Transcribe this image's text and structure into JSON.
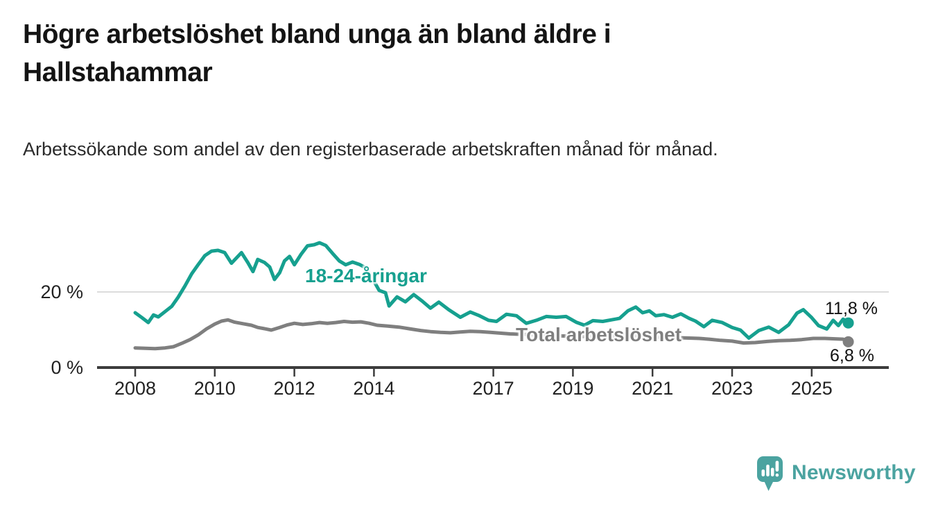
{
  "header": {
    "title": "Högre arbetslöshet bland unga än bland äldre i Hallstahammar",
    "subtitle": "Arbetssökande som andel av den registerbaserade arbetskraften månad för månad."
  },
  "chart_data": {
    "type": "line",
    "title": "Högre arbetslöshet bland unga än bland äldre i Hallstahammar",
    "subtitle": "Arbetssökande som andel av den registerbaserade arbetskraften månad för månad.",
    "grid": "horizontal-only",
    "x_axis": {
      "ticks": [
        2008,
        2010,
        2012,
        2014,
        2017,
        2019,
        2021,
        2023,
        2025
      ],
      "range": [
        2007.0,
        2026.9
      ]
    },
    "y_axis": {
      "ticks": [
        {
          "value": 0,
          "label": "0 %"
        },
        {
          "value": 20,
          "label": "20 %"
        }
      ],
      "range": [
        0,
        36
      ],
      "unit": "%"
    },
    "series": [
      {
        "name": "18-24-åringar",
        "color": "#16a08f",
        "end_value": 11.8,
        "end_label": "11,8 %",
        "points": [
          [
            2008.0,
            14.5
          ],
          [
            2008.17,
            13.2
          ],
          [
            2008.33,
            11.9
          ],
          [
            2008.46,
            13.9
          ],
          [
            2008.58,
            13.4
          ],
          [
            2008.75,
            14.8
          ],
          [
            2008.92,
            16.2
          ],
          [
            2009.08,
            18.6
          ],
          [
            2009.25,
            21.6
          ],
          [
            2009.42,
            24.8
          ],
          [
            2009.58,
            27.2
          ],
          [
            2009.75,
            29.6
          ],
          [
            2009.92,
            30.8
          ],
          [
            2010.08,
            31.0
          ],
          [
            2010.25,
            30.4
          ],
          [
            2010.42,
            27.6
          ],
          [
            2010.58,
            29.4
          ],
          [
            2010.67,
            30.4
          ],
          [
            2010.83,
            27.8
          ],
          [
            2010.96,
            25.4
          ],
          [
            2011.08,
            28.6
          ],
          [
            2011.25,
            27.8
          ],
          [
            2011.38,
            26.6
          ],
          [
            2011.5,
            23.3
          ],
          [
            2011.63,
            25.1
          ],
          [
            2011.75,
            28.2
          ],
          [
            2011.88,
            29.4
          ],
          [
            2012.0,
            27.2
          ],
          [
            2012.17,
            30.0
          ],
          [
            2012.33,
            32.2
          ],
          [
            2012.5,
            32.5
          ],
          [
            2012.63,
            33.0
          ],
          [
            2012.79,
            32.3
          ],
          [
            2012.96,
            30.2
          ],
          [
            2013.13,
            28.2
          ],
          [
            2013.29,
            27.2
          ],
          [
            2013.46,
            27.9
          ],
          [
            2013.63,
            27.3
          ],
          [
            2013.79,
            26.4
          ],
          [
            2013.96,
            23.6
          ],
          [
            2014.13,
            20.4
          ],
          [
            2014.29,
            19.8
          ],
          [
            2014.38,
            16.3
          ],
          [
            2014.58,
            18.7
          ],
          [
            2014.79,
            17.4
          ],
          [
            2015.0,
            19.3
          ],
          [
            2015.21,
            17.6
          ],
          [
            2015.42,
            15.7
          ],
          [
            2015.63,
            17.3
          ],
          [
            2015.88,
            15.3
          ],
          [
            2016.17,
            13.3
          ],
          [
            2016.42,
            14.7
          ],
          [
            2016.63,
            13.8
          ],
          [
            2016.88,
            12.5
          ],
          [
            2017.08,
            12.2
          ],
          [
            2017.33,
            14.1
          ],
          [
            2017.58,
            13.7
          ],
          [
            2017.83,
            11.7
          ],
          [
            2018.08,
            12.5
          ],
          [
            2018.33,
            13.5
          ],
          [
            2018.58,
            13.3
          ],
          [
            2018.83,
            13.5
          ],
          [
            2019.08,
            12.0
          ],
          [
            2019.29,
            11.2
          ],
          [
            2019.5,
            12.4
          ],
          [
            2019.75,
            12.2
          ],
          [
            2019.96,
            12.6
          ],
          [
            2020.17,
            13.0
          ],
          [
            2020.38,
            15.0
          ],
          [
            2020.58,
            16.0
          ],
          [
            2020.75,
            14.5
          ],
          [
            2020.92,
            15.0
          ],
          [
            2021.08,
            13.7
          ],
          [
            2021.29,
            14.0
          ],
          [
            2021.5,
            13.3
          ],
          [
            2021.71,
            14.2
          ],
          [
            2021.92,
            13.0
          ],
          [
            2022.08,
            12.3
          ],
          [
            2022.29,
            10.8
          ],
          [
            2022.5,
            12.5
          ],
          [
            2022.75,
            11.9
          ],
          [
            2023.0,
            10.6
          ],
          [
            2023.21,
            9.9
          ],
          [
            2023.42,
            7.8
          ],
          [
            2023.67,
            9.8
          ],
          [
            2023.92,
            10.7
          ],
          [
            2024.17,
            9.3
          ],
          [
            2024.42,
            11.3
          ],
          [
            2024.63,
            14.4
          ],
          [
            2024.79,
            15.3
          ],
          [
            2025.0,
            13.2
          ],
          [
            2025.17,
            11.1
          ],
          [
            2025.38,
            10.2
          ],
          [
            2025.54,
            12.5
          ],
          [
            2025.67,
            11.1
          ],
          [
            2025.79,
            12.8
          ],
          [
            2025.92,
            11.8
          ]
        ]
      },
      {
        "name": "Total arbetslöshet",
        "color": "#7f7f7f",
        "end_value": 6.8,
        "end_label": "6,8 %",
        "points": [
          [
            2008.0,
            5.2
          ],
          [
            2008.25,
            5.1
          ],
          [
            2008.5,
            5.0
          ],
          [
            2008.75,
            5.2
          ],
          [
            2008.96,
            5.5
          ],
          [
            2009.17,
            6.4
          ],
          [
            2009.38,
            7.4
          ],
          [
            2009.58,
            8.6
          ],
          [
            2009.79,
            10.2
          ],
          [
            2010.0,
            11.5
          ],
          [
            2010.17,
            12.3
          ],
          [
            2010.33,
            12.6
          ],
          [
            2010.5,
            12.0
          ],
          [
            2010.71,
            11.6
          ],
          [
            2010.92,
            11.2
          ],
          [
            2011.08,
            10.6
          ],
          [
            2011.29,
            10.2
          ],
          [
            2011.42,
            9.9
          ],
          [
            2011.63,
            10.6
          ],
          [
            2011.83,
            11.3
          ],
          [
            2012.0,
            11.7
          ],
          [
            2012.21,
            11.4
          ],
          [
            2012.42,
            11.6
          ],
          [
            2012.63,
            11.9
          ],
          [
            2012.83,
            11.7
          ],
          [
            2013.04,
            11.9
          ],
          [
            2013.25,
            12.2
          ],
          [
            2013.46,
            12.0
          ],
          [
            2013.67,
            12.1
          ],
          [
            2013.88,
            11.7
          ],
          [
            2014.08,
            11.2
          ],
          [
            2014.33,
            11.0
          ],
          [
            2014.63,
            10.7
          ],
          [
            2014.92,
            10.2
          ],
          [
            2015.17,
            9.8
          ],
          [
            2015.42,
            9.5
          ],
          [
            2015.67,
            9.3
          ],
          [
            2015.92,
            9.2
          ],
          [
            2016.17,
            9.4
          ],
          [
            2016.42,
            9.6
          ],
          [
            2016.67,
            9.5
          ],
          [
            2016.92,
            9.3
          ],
          [
            2017.17,
            9.1
          ],
          [
            2017.42,
            8.9
          ],
          [
            2017.67,
            8.8
          ],
          [
            2017.92,
            8.7
          ],
          [
            2018.25,
            8.6
          ],
          [
            2018.58,
            8.4
          ],
          [
            2018.92,
            8.3
          ],
          [
            2019.25,
            8.2
          ],
          [
            2019.58,
            8.1
          ],
          [
            2019.92,
            8.3
          ],
          [
            2020.25,
            8.5
          ],
          [
            2020.58,
            8.4
          ],
          [
            2020.92,
            8.2
          ],
          [
            2021.25,
            8.0
          ],
          [
            2021.58,
            7.9
          ],
          [
            2021.92,
            7.8
          ],
          [
            2022.17,
            7.7
          ],
          [
            2022.42,
            7.5
          ],
          [
            2022.71,
            7.2
          ],
          [
            2023.0,
            7.0
          ],
          [
            2023.29,
            6.5
          ],
          [
            2023.58,
            6.6
          ],
          [
            2023.88,
            6.9
          ],
          [
            2024.17,
            7.1
          ],
          [
            2024.46,
            7.2
          ],
          [
            2024.75,
            7.4
          ],
          [
            2025.04,
            7.7
          ],
          [
            2025.33,
            7.7
          ],
          [
            2025.58,
            7.6
          ],
          [
            2025.79,
            7.5
          ],
          [
            2025.92,
            6.8
          ]
        ]
      }
    ]
  },
  "annotations": {
    "series_label_young": "18-24-åringar",
    "series_label_total": "Total arbetslöshet",
    "end_value_young": "11,8 %",
    "end_value_total": "6,8 %"
  },
  "branding": {
    "logo_text": "Newsworthy",
    "logo_icon": "bar-chart-speech-bubble",
    "logo_color": "#4BA3A0"
  }
}
